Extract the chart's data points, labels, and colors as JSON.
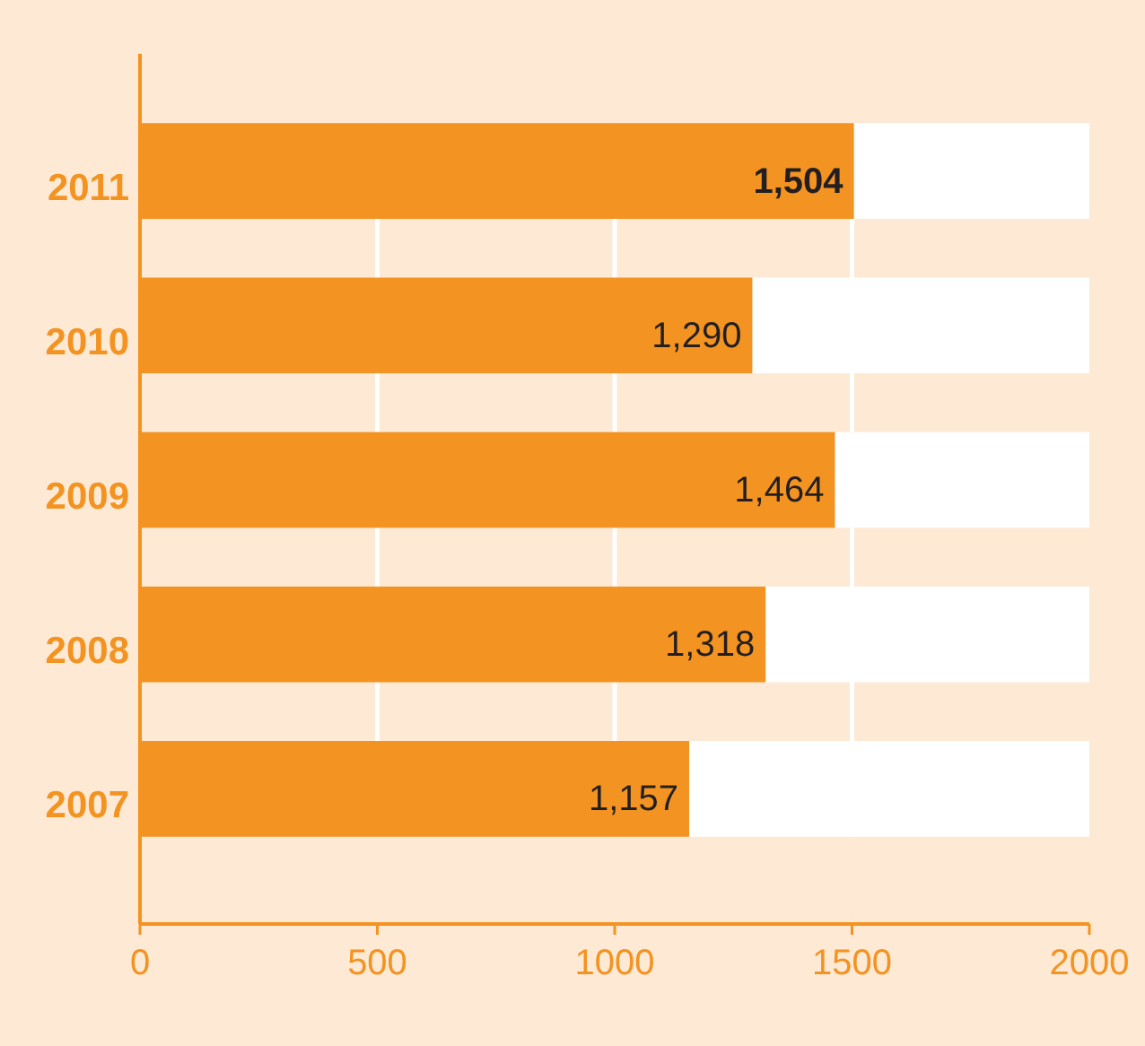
{
  "chart_data": {
    "type": "bar",
    "orientation": "horizontal",
    "categories": [
      "2011",
      "2010",
      "2009",
      "2008",
      "2007"
    ],
    "values": [
      1504,
      1290,
      1464,
      1318,
      1157
    ],
    "color": "#f39322",
    "value_labels": [
      "1,504",
      "1,290",
      "1,464",
      "1,318",
      "1,157"
    ],
    "xlim": [
      0,
      2000
    ],
    "xticks": [
      0,
      500,
      1000,
      1500,
      2000
    ],
    "grid": "x"
  }
}
